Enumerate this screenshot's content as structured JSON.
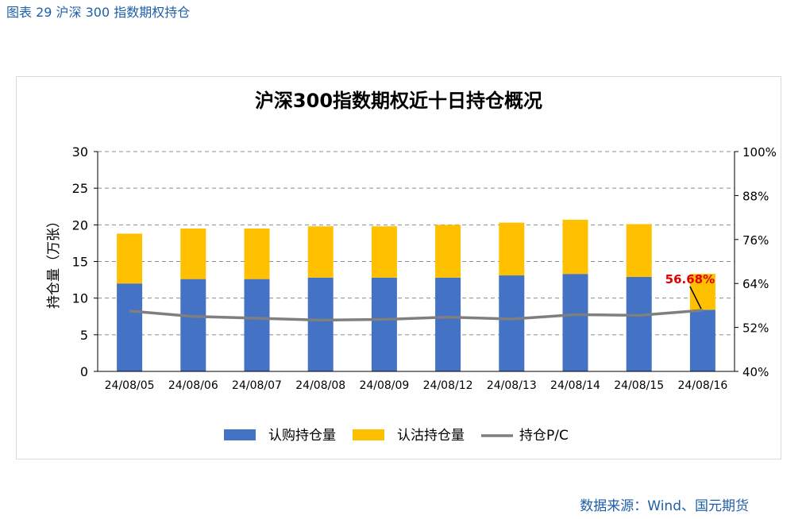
{
  "figure_caption": "图表 29 沪深 300 指数期权持仓",
  "source": "数据来源：Wind、国元期货",
  "chart_data": {
    "type": "bar",
    "stacked": true,
    "title": "沪深300指数期权近十日持仓概况",
    "ylabel": "持仓量（万张）",
    "ylim": [
      0,
      30
    ],
    "yticks": [
      "0",
      "5",
      "10",
      "15",
      "20",
      "25",
      "30"
    ],
    "y2lim": [
      0.4,
      1.0
    ],
    "y2ticks": [
      "40%",
      "52%",
      "64%",
      "76%",
      "88%",
      "100%"
    ],
    "categories": [
      "24/08/05",
      "24/08/06",
      "24/08/07",
      "24/08/08",
      "24/08/09",
      "24/08/12",
      "24/08/13",
      "24/08/14",
      "24/08/15",
      "24/08/16"
    ],
    "series": [
      {
        "name": "认购持仓量",
        "type": "bar",
        "color": "#4472c4",
        "values": [
          12.0,
          12.6,
          12.6,
          12.8,
          12.8,
          12.8,
          13.1,
          13.3,
          12.9,
          8.4
        ]
      },
      {
        "name": "认沽持仓量",
        "type": "bar",
        "color": "#ffc000",
        "values": [
          6.8,
          6.9,
          6.9,
          7.0,
          7.0,
          7.2,
          7.2,
          7.4,
          7.2,
          4.9
        ]
      },
      {
        "name": "持仓P/C",
        "type": "line",
        "axis": "right",
        "color": "#7f7f7f",
        "values": [
          0.565,
          0.55,
          0.545,
          0.54,
          0.542,
          0.548,
          0.543,
          0.555,
          0.553,
          0.5668
        ]
      }
    ],
    "annotation": {
      "text": "56.68%",
      "category_index": 9,
      "color": "#e00000"
    },
    "grid": true,
    "legend": "bottom"
  }
}
